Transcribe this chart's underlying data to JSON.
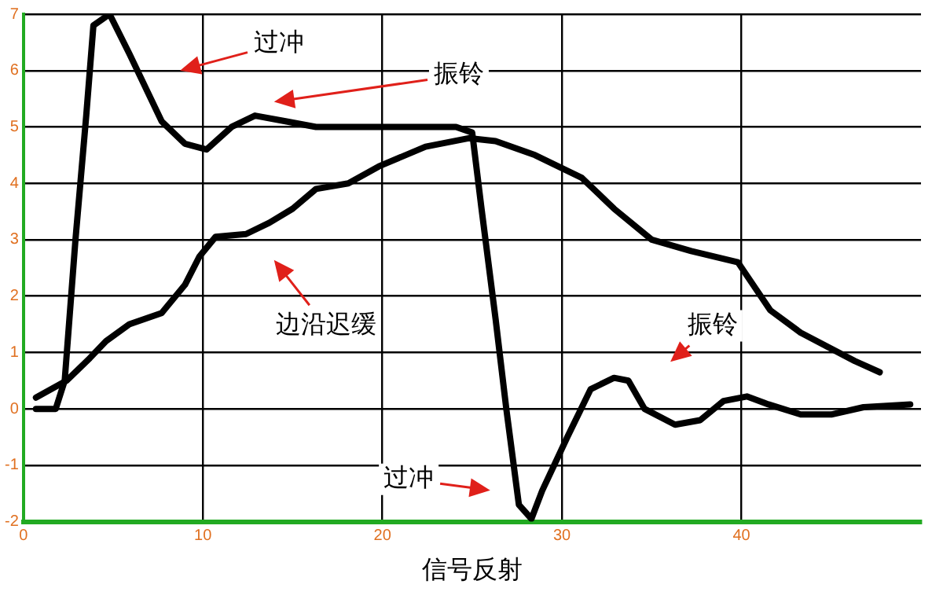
{
  "chart_data": {
    "type": "line",
    "xlabel": "信号反射",
    "xlim": [
      0,
      50
    ],
    "xticks": [
      0,
      10,
      20,
      30,
      40
    ],
    "ylim": [
      -2,
      7
    ],
    "yticks": [
      -2,
      -1,
      0,
      1,
      2,
      3,
      4,
      5,
      6,
      7
    ],
    "grid": true,
    "legend": false,
    "marker": "none",
    "line_style": "solid",
    "series": [
      {
        "color": "#000000",
        "x": [
          0.7,
          1.8,
          2.3,
          2.9,
          3.5,
          3.9,
          4.8,
          5.9,
          7.7,
          9.0,
          10.2,
          11.6,
          12.9,
          14.6,
          16.3,
          20.7,
          24.1,
          25.0,
          25.5,
          26.3,
          26.9,
          27.6,
          28.3,
          28.9,
          30.3,
          31.6,
          32.9,
          33.7,
          34.6,
          36.3,
          37.7,
          39.0,
          40.3,
          41.5,
          43.3,
          45.0,
          46.8,
          49.4
        ],
        "values": [
          0,
          0,
          0.5,
          3,
          5.2,
          6.8,
          7,
          6.3,
          5.1,
          4.7,
          4.6,
          5,
          5.2,
          5.1,
          5,
          5,
          5,
          4.9,
          3.6,
          1.6,
          0,
          -1.7,
          -1.95,
          -1.45,
          -0.5,
          0.35,
          0.55,
          0.5,
          0,
          -0.28,
          -0.2,
          0.14,
          0.22,
          0.08,
          -0.1,
          -0.1,
          0.03,
          0.08
        ]
      },
      {
        "color": "#000000",
        "x": [
          0.7,
          2.4,
          3.7,
          4.6,
          5.9,
          7.7,
          9.0,
          9.8,
          10.7,
          12.4,
          13.7,
          15.0,
          16.3,
          18.1,
          19.8,
          22.4,
          24.8,
          26.3,
          28.5,
          31.1,
          32.9,
          35.0,
          37.2,
          39.8,
          41.6,
          43.3,
          46.3,
          47.7
        ],
        "values": [
          0.2,
          0.5,
          0.9,
          1.2,
          1.5,
          1.7,
          2.2,
          2.7,
          3.05,
          3.1,
          3.3,
          3.55,
          3.9,
          4,
          4.3,
          4.65,
          4.8,
          4.75,
          4.5,
          4.1,
          3.55,
          3,
          2.8,
          2.6,
          1.75,
          1.35,
          0.85,
          0.65
        ]
      }
    ],
    "annotations": [
      "过冲",
      "振铃",
      "边沿迟缓",
      "振铃",
      "过冲"
    ]
  }
}
